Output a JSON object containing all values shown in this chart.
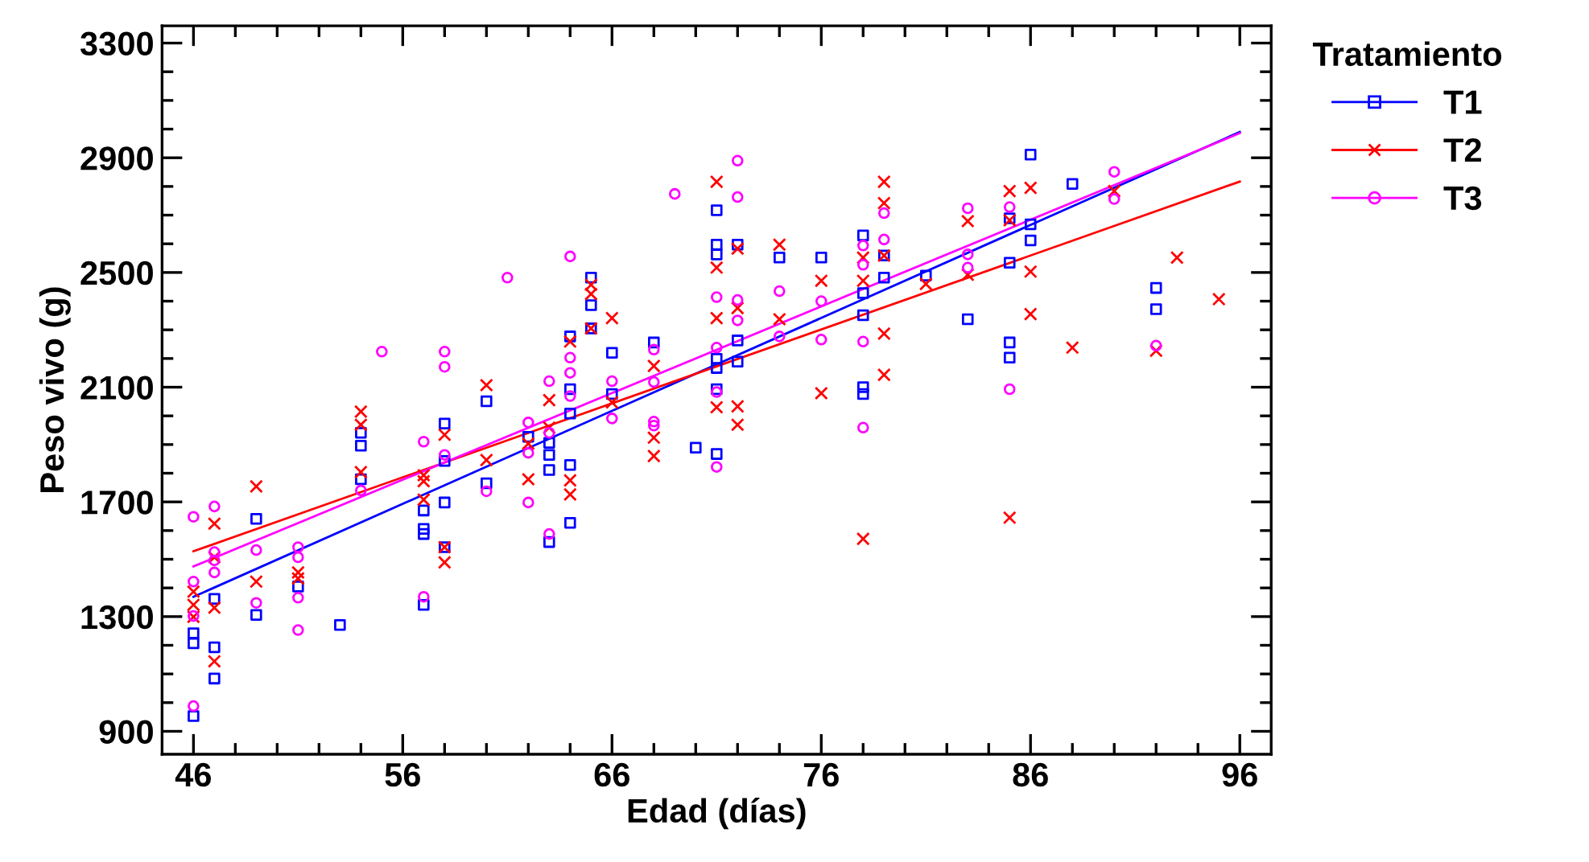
{
  "chart_data": {
    "type": "scatter",
    "xlabel": "Edad (días)",
    "ylabel": "Peso vivo (g)",
    "legend_title": "Tratamiento",
    "legend": "right",
    "grid": false,
    "xlim": [
      44.5,
      97.5
    ],
    "ylim": [
      820,
      3360
    ],
    "xticks": [
      46,
      {
        "value": 48,
        "label": null
      },
      {
        "value": 50,
        "label": null
      },
      {
        "value": 52,
        "label": null
      },
      {
        "value": 54,
        "label": null
      },
      56,
      {
        "value": 58,
        "label": null
      },
      {
        "value": 60,
        "label": null
      },
      {
        "value": 62,
        "label": null
      },
      {
        "value": 64,
        "label": null
      },
      66,
      {
        "value": 68,
        "label": null
      },
      {
        "value": 70,
        "label": null
      },
      {
        "value": 72,
        "label": null
      },
      {
        "value": 74,
        "label": null
      },
      76,
      {
        "value": 78,
        "label": null
      },
      {
        "value": 80,
        "label": null
      },
      {
        "value": 82,
        "label": null
      },
      {
        "value": 84,
        "label": null
      },
      86,
      {
        "value": 88,
        "label": null
      },
      {
        "value": 90,
        "label": null
      },
      {
        "value": 92,
        "label": null
      },
      {
        "value": 94,
        "label": null
      },
      96
    ],
    "yticks": [
      900,
      {
        "value": 1000,
        "label": null
      },
      {
        "value": 1100,
        "label": null
      },
      {
        "value": 1200,
        "label": null
      },
      1300,
      {
        "value": 1400,
        "label": null
      },
      {
        "value": 1500,
        "label": null
      },
      {
        "value": 1600,
        "label": null
      },
      1700,
      {
        "value": 1800,
        "label": null
      },
      {
        "value": 1900,
        "label": null
      },
      {
        "value": 2000,
        "label": null
      },
      2100,
      {
        "value": 2200,
        "label": null
      },
      {
        "value": 2300,
        "label": null
      },
      {
        "value": 2400,
        "label": null
      },
      2500,
      {
        "value": 2600,
        "label": null
      },
      {
        "value": 2700,
        "label": null
      },
      {
        "value": 2800,
        "label": null
      },
      2900,
      {
        "value": 3000,
        "label": null
      },
      {
        "value": 3100,
        "label": null
      },
      {
        "value": 3200,
        "label": null
      },
      3300
    ],
    "series": [
      {
        "name": "T1",
        "marker": "square",
        "color": "#0000ff",
        "x": [
          46,
          46,
          46,
          47,
          47,
          47,
          49,
          49,
          51,
          53,
          54,
          54,
          54,
          57,
          57,
          57,
          57,
          58,
          58,
          58,
          58,
          60,
          60,
          62,
          63,
          63,
          63,
          63,
          64,
          64,
          64,
          64,
          64,
          65,
          65,
          65,
          66,
          66,
          68,
          70,
          71,
          71,
          71,
          71,
          71,
          71,
          71,
          72,
          72,
          72,
          74,
          76,
          78,
          78,
          78,
          78,
          78,
          79,
          79,
          81,
          83,
          85,
          85,
          85,
          85,
          86,
          86,
          86,
          88,
          92,
          92
        ],
        "values": [
          1242,
          1207,
          953,
          1362,
          1193,
          1084,
          1641,
          1306,
          1405,
          1271,
          1941,
          1896,
          1779,
          1341,
          1588,
          1606,
          1670,
          1973,
          1698,
          1542,
          1843,
          2051,
          1765,
          1927,
          1906,
          1864,
          1811,
          1560,
          2277,
          2093,
          2008,
          1829,
          1627,
          2482,
          2386,
          2305,
          2220,
          2076,
          2256,
          1889,
          2717,
          2597,
          2563,
          2199,
          2167,
          2093,
          1867,
          2597,
          2263,
          2189,
          2552,
          2552,
          2629,
          2428,
          2351,
          2100,
          2076,
          2559,
          2482,
          2489,
          2337,
          2689,
          2534,
          2256,
          2203,
          2911,
          2668,
          2612,
          2809,
          2446,
          2372
        ]
      },
      {
        "name": "T2",
        "marker": "cross",
        "color": "#ff0000",
        "x": [
          46,
          46,
          46,
          47,
          47,
          47,
          47,
          49,
          49,
          51,
          51,
          54,
          54,
          54,
          57,
          57,
          57,
          58,
          58,
          58,
          60,
          60,
          62,
          62,
          63,
          63,
          64,
          64,
          64,
          65,
          65,
          65,
          66,
          66,
          68,
          68,
          68,
          71,
          71,
          71,
          71,
          72,
          72,
          72,
          72,
          74,
          74,
          76,
          76,
          78,
          78,
          78,
          79,
          79,
          79,
          79,
          79,
          81,
          83,
          83,
          85,
          85,
          85,
          86,
          86,
          86,
          88,
          90,
          92,
          93,
          95
        ],
        "values": [
          1387,
          1341,
          1299,
          1624,
          1507,
          1331,
          1144,
          1754,
          1422,
          1454,
          1433,
          2015,
          1969,
          1804,
          1793,
          1772,
          1708,
          1934,
          1542,
          1489,
          2107,
          1846,
          1903,
          1779,
          2055,
          1959,
          2259,
          1775,
          1726,
          2457,
          2425,
          2305,
          2341,
          2047,
          2174,
          1924,
          1860,
          2816,
          2517,
          2341,
          2030,
          2583,
          2376,
          2033,
          1969,
          2597,
          2337,
          2471,
          2079,
          2552,
          2471,
          1571,
          2816,
          2742,
          2559,
          2287,
          2143,
          2460,
          2679,
          2492,
          2784,
          2682,
          1645,
          2795,
          2503,
          2355,
          2238,
          2784,
          2227,
          2552,
          2407
        ]
      },
      {
        "name": "T3",
        "marker": "circle",
        "color": "#ff00ff",
        "x": [
          46,
          46,
          46,
          46,
          47,
          47,
          47,
          47,
          49,
          49,
          51,
          51,
          51,
          51,
          54,
          55,
          57,
          57,
          58,
          58,
          58,
          60,
          61,
          62,
          62,
          62,
          63,
          63,
          63,
          64,
          64,
          64,
          64,
          66,
          66,
          68,
          68,
          68,
          68,
          69,
          71,
          71,
          71,
          71,
          72,
          72,
          72,
          72,
          74,
          74,
          76,
          76,
          78,
          78,
          78,
          78,
          79,
          79,
          83,
          83,
          83,
          85,
          85,
          90,
          90,
          92
        ],
        "values": [
          1648,
          1422,
          1302,
          988,
          1684,
          1525,
          1496,
          1454,
          1532,
          1348,
          1542,
          1507,
          1366,
          1253,
          1740,
          2224,
          1910,
          1369,
          2224,
          2171,
          1864,
          1737,
          2482,
          1977,
          1871,
          1698,
          2121,
          1941,
          1588,
          2556,
          2203,
          2150,
          2069,
          2121,
          1991,
          2231,
          2118,
          1980,
          1966,
          2774,
          2414,
          2238,
          2083,
          1822,
          2890,
          2763,
          2404,
          2333,
          2435,
          2277,
          2400,
          2266,
          2594,
          2527,
          2259,
          1959,
          2707,
          2615,
          2724,
          2563,
          2517,
          2728,
          2093,
          2851,
          2756,
          2245
        ]
      },
      {
        "type": "line",
        "color": "#0000ff",
        "x": [
          46,
          96
        ],
        "values": [
          1369,
          2990
        ]
      },
      {
        "type": "line",
        "color": "#ff0000",
        "x": [
          46,
          96
        ],
        "values": [
          1528,
          2817
        ]
      },
      {
        "type": "line",
        "color": "#ff00ff",
        "x": [
          46,
          96
        ],
        "values": [
          1475,
          2986
        ]
      }
    ]
  }
}
